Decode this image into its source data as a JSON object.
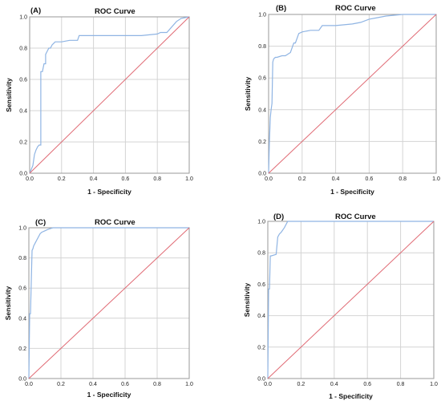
{
  "colors": {
    "roc": "#8fb4e3",
    "reference": "#e06a74",
    "grid": "#d4d4d4",
    "frame": "#9a9a9a"
  },
  "chart_data": [
    {
      "type": "line",
      "panel_label": "(A)",
      "title": "ROC Curve",
      "xlabel": "1 - Specificity",
      "ylabel": "Sensitivity",
      "xlim": [
        0,
        1
      ],
      "ylim": [
        0,
        1
      ],
      "x_ticks": [
        "0.0",
        "0.2",
        "0.4",
        "0.6",
        "0.8",
        "1.0"
      ],
      "y_ticks": [
        "0.0",
        "0.2",
        "0.4",
        "0.6",
        "0.8",
        "1.0"
      ],
      "grid": true,
      "series": [
        {
          "x": [
            0,
            0.02,
            0.03,
            0.04,
            0.05,
            0.06,
            0.07,
            0.07,
            0.08,
            0.09,
            0.1,
            0.1,
            0.11,
            0.12,
            0.13,
            0.14,
            0.15,
            0.16,
            0.18,
            0.2,
            0.25,
            0.3,
            0.31,
            0.45,
            0.5,
            0.6,
            0.7,
            0.8,
            0.82,
            0.86,
            0.92,
            0.95,
            1.0
          ],
          "y": [
            0,
            0.05,
            0.12,
            0.15,
            0.17,
            0.18,
            0.18,
            0.65,
            0.65,
            0.7,
            0.7,
            0.76,
            0.78,
            0.8,
            0.8,
            0.82,
            0.83,
            0.84,
            0.84,
            0.84,
            0.85,
            0.85,
            0.88,
            0.88,
            0.88,
            0.88,
            0.88,
            0.89,
            0.9,
            0.9,
            0.97,
            0.99,
            1.0
          ]
        },
        {
          "x": [
            0,
            1
          ],
          "y": [
            0,
            1
          ]
        }
      ]
    },
    {
      "type": "line",
      "panel_label": "(B)",
      "title": "ROC Curve",
      "xlabel": "1 - Specificity",
      "ylabel": "Sensitivity",
      "xlim": [
        0,
        1
      ],
      "ylim": [
        0,
        1
      ],
      "x_ticks": [
        "0.0",
        "0.2",
        "0.4",
        "0.6",
        "0.8",
        "1.0"
      ],
      "y_ticks": [
        "0.0",
        "0.2",
        "0.4",
        "0.6",
        "0.8",
        "1.0"
      ],
      "grid": true,
      "series": [
        {
          "x": [
            0,
            0.005,
            0.01,
            0.015,
            0.02,
            0.025,
            0.03,
            0.04,
            0.05,
            0.08,
            0.1,
            0.13,
            0.15,
            0.16,
            0.18,
            0.2,
            0.25,
            0.3,
            0.32,
            0.4,
            0.5,
            0.55,
            0.6,
            0.65,
            0.7,
            0.8,
            1.0
          ],
          "y": [
            0,
            0.2,
            0.35,
            0.4,
            0.44,
            0.7,
            0.72,
            0.73,
            0.73,
            0.74,
            0.74,
            0.76,
            0.82,
            0.82,
            0.88,
            0.89,
            0.9,
            0.9,
            0.93,
            0.93,
            0.94,
            0.95,
            0.97,
            0.98,
            0.99,
            1.0,
            1.0
          ]
        },
        {
          "x": [
            0,
            1
          ],
          "y": [
            0,
            1
          ]
        }
      ]
    },
    {
      "type": "line",
      "panel_label": "(C)",
      "title": "ROC Curve",
      "xlabel": "1 - Specificity",
      "ylabel": "Sensitivity",
      "xlim": [
        0,
        1
      ],
      "ylim": [
        0,
        1
      ],
      "x_ticks": [
        "0.0",
        "0.2",
        "0.4",
        "0.6",
        "0.8",
        "1.0"
      ],
      "y_ticks": [
        "0.0",
        "0.2",
        "0.4",
        "0.6",
        "0.8",
        "1.0"
      ],
      "grid": true,
      "series": [
        {
          "x": [
            0,
            0.005,
            0.01,
            0.02,
            0.025,
            0.03,
            0.04,
            0.05,
            0.06,
            0.07,
            0.08,
            0.1,
            0.12,
            0.15,
            0.2,
            1.0
          ],
          "y": [
            0,
            0.43,
            0.43,
            0.85,
            0.86,
            0.88,
            0.9,
            0.92,
            0.94,
            0.96,
            0.97,
            0.98,
            0.99,
            1.0,
            1.0,
            1.0
          ]
        },
        {
          "x": [
            0,
            1
          ],
          "y": [
            0,
            1
          ]
        }
      ]
    },
    {
      "type": "line",
      "panel_label": "(D)",
      "title": "ROC Curve",
      "xlabel": "1 - Specificity",
      "ylabel": "Sensitivity",
      "xlim": [
        0,
        1
      ],
      "ylim": [
        0,
        1
      ],
      "x_ticks": [
        "0.0",
        "0.2",
        "0.4",
        "0.6",
        "0.8",
        "1.0"
      ],
      "y_ticks": [
        "0.0",
        "0.2",
        "0.4",
        "0.6",
        "0.8",
        "1.0"
      ],
      "grid": true,
      "series": [
        {
          "x": [
            0,
            0.005,
            0.01,
            0.015,
            0.02,
            0.05,
            0.06,
            0.07,
            0.08,
            0.1,
            0.12,
            0.15,
            1.0
          ],
          "y": [
            0,
            0.57,
            0.57,
            0.78,
            0.78,
            0.79,
            0.9,
            0.92,
            0.93,
            0.96,
            1.0,
            1.0,
            1.0
          ]
        },
        {
          "x": [
            0,
            1
          ],
          "y": [
            0,
            1
          ]
        }
      ]
    }
  ]
}
